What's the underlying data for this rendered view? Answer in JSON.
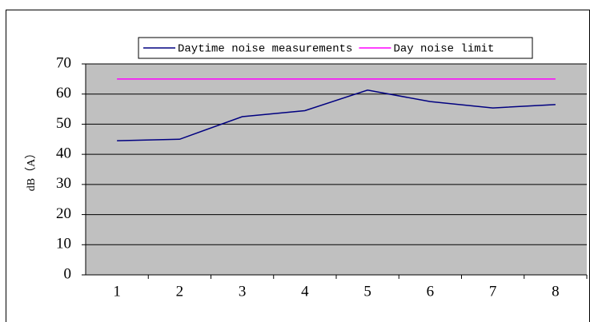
{
  "chart_data": {
    "type": "line",
    "ylabel": "dB（A）",
    "categories": [
      "1",
      "2",
      "3",
      "4",
      "5",
      "6",
      "7",
      "8"
    ],
    "series": [
      {
        "name": "Daytime noise measurements",
        "color": "#000080",
        "values": [
          44.5,
          45,
          52.5,
          54.5,
          61.3,
          57.5,
          55.4,
          56.5
        ]
      },
      {
        "name": "Day noise limit",
        "color": "#ff00ff",
        "values": [
          65,
          65,
          65,
          65,
          65,
          65,
          65,
          65
        ]
      }
    ],
    "ylim": [
      0,
      70
    ],
    "yticks": [
      0,
      10,
      20,
      30,
      40,
      50,
      60,
      70
    ],
    "grid": true,
    "legend": "top",
    "plot_background": "#c0c0c0"
  }
}
